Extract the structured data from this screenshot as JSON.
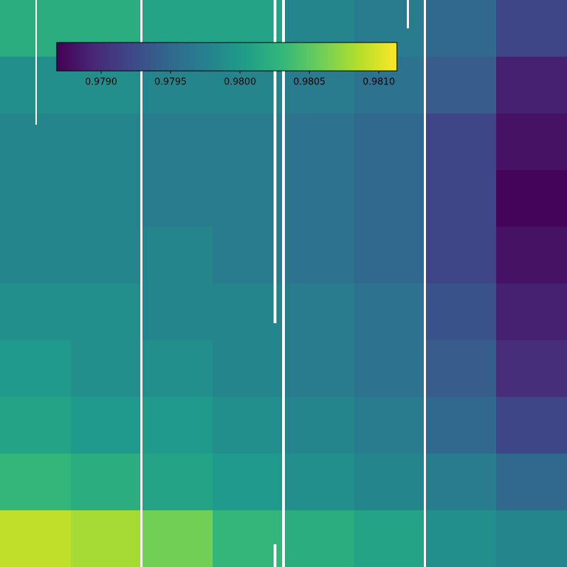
{
  "chart_data": {
    "type": "heatmap",
    "colormap": "viridis",
    "values": [
      [
        0.9802,
        0.9802,
        0.9801,
        0.9801,
        0.9798,
        0.9797,
        0.9795,
        0.9792
      ],
      [
        0.9799,
        0.9799,
        0.9798,
        0.9798,
        0.9797,
        0.9796,
        0.9794,
        0.9789
      ],
      [
        0.9798,
        0.9798,
        0.9797,
        0.9797,
        0.9796,
        0.9795,
        0.9792,
        0.9788
      ],
      [
        0.9798,
        0.9798,
        0.9797,
        0.9797,
        0.9796,
        0.9795,
        0.9792,
        0.9787
      ],
      [
        0.9798,
        0.9798,
        0.9798,
        0.9797,
        0.9796,
        0.9795,
        0.9792,
        0.9788
      ],
      [
        0.9799,
        0.9799,
        0.9798,
        0.9798,
        0.9797,
        0.9796,
        0.9793,
        0.9789
      ],
      [
        0.98,
        0.9799,
        0.9799,
        0.9798,
        0.9797,
        0.9796,
        0.9794,
        0.979
      ],
      [
        0.9801,
        0.98,
        0.98,
        0.9799,
        0.9798,
        0.9797,
        0.9795,
        0.9792
      ],
      [
        0.9803,
        0.9802,
        0.9801,
        0.98,
        0.9799,
        0.9798,
        0.9797,
        0.9795
      ],
      [
        0.9809,
        0.9808,
        0.9806,
        0.9803,
        0.9802,
        0.9801,
        0.9799,
        0.9798
      ]
    ],
    "clim": [
      0.97868,
      0.98113
    ],
    "colorbar_ticks": [
      {
        "value": 0.979,
        "label": "0.9790"
      },
      {
        "value": 0.9795,
        "label": "0.9795"
      },
      {
        "value": 0.98,
        "label": "0.9800"
      },
      {
        "value": 0.9805,
        "label": "0.9805"
      },
      {
        "value": 0.981,
        "label": "0.9810"
      }
    ]
  }
}
